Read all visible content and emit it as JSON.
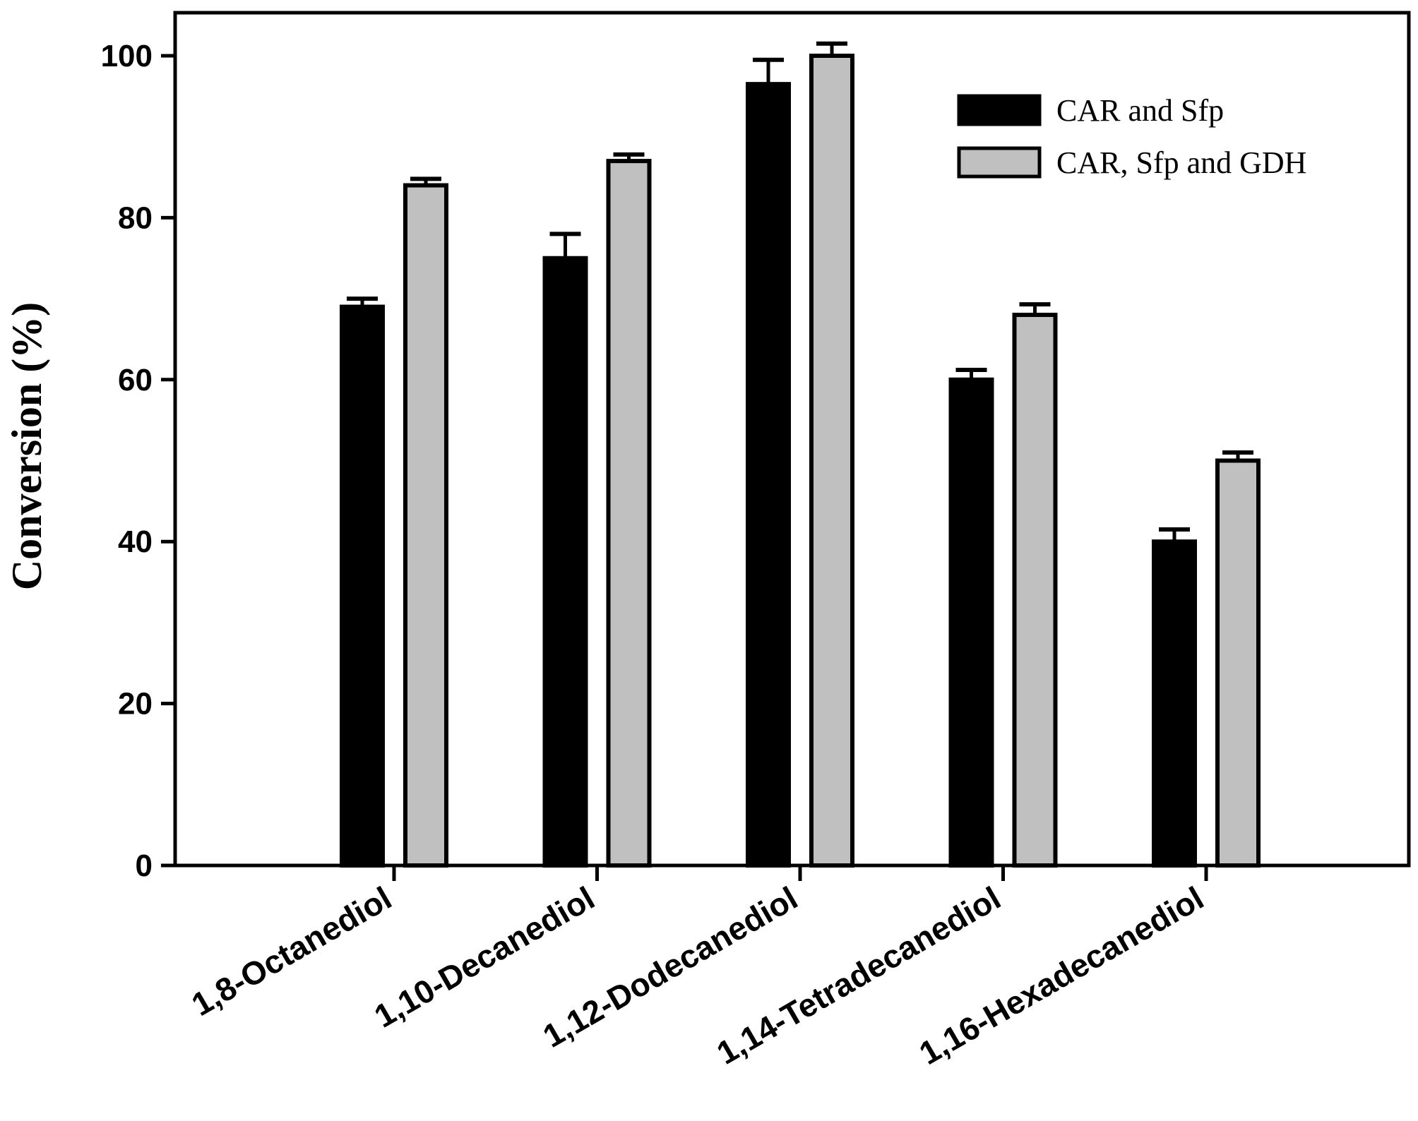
{
  "chart_data": {
    "type": "bar",
    "title": "",
    "xlabel": "",
    "ylabel": "Conversion (%)",
    "ylim": [
      0,
      100
    ],
    "yticks": [
      0,
      20,
      40,
      60,
      80,
      100
    ],
    "grid": false,
    "legend_position": "top-right",
    "categories": [
      "1,8-Octanediol",
      "1,10-Decanediol",
      "1,12-Dodecanediol",
      "1,14-Tetradecanediol",
      "1,16-Hexadecanediol"
    ],
    "series": [
      {
        "name": "CAR and Sfp",
        "color": "#000000",
        "values": [
          69,
          75,
          96.5,
          60,
          40
        ],
        "errors": [
          1,
          3,
          3,
          1.2,
          1.5
        ]
      },
      {
        "name": "CAR, Sfp and GDH",
        "color": "#c0c0c0",
        "values": [
          84,
          87,
          100,
          68,
          50
        ],
        "errors": [
          0.8,
          0.8,
          1.5,
          1.3,
          1
        ]
      }
    ]
  }
}
